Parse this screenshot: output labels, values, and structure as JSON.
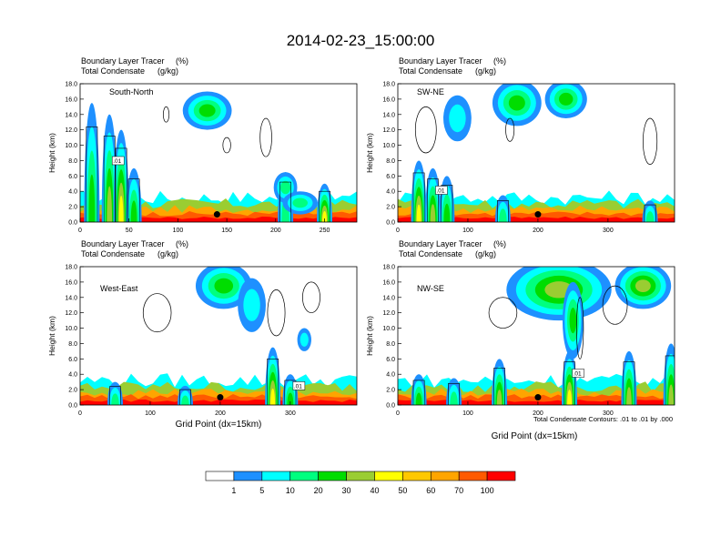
{
  "title": "2014-02-23_15:00:00",
  "label_left_1": "Boundary Layer Tracer",
  "label_right_1": "(%)",
  "label_left_2": "Total Condensate",
  "label_right_2": "(g/kg)",
  "ylabel": "Height (km)",
  "xlabel": "Grid Point (dx=15km)",
  "contour_note": "Total Condensate Contours: .01 to .01 by .000",
  "contour_label": ".01",
  "colorbar": {
    "levels": [
      "1",
      "5",
      "10",
      "20",
      "30",
      "40",
      "50",
      "60",
      "70",
      "100"
    ],
    "colors": [
      "#ffffff",
      "#1e90ff",
      "#00ffff",
      "#00ff7f",
      "#00dd00",
      "#9acd32",
      "#ffff00",
      "#ffc800",
      "#ffa500",
      "#ff5a00",
      "#ff0000"
    ]
  },
  "chart_data": [
    {
      "type": "heatmap",
      "panel": "South-North",
      "title": "South-North",
      "ylim": [
        0,
        18
      ],
      "xlim": [
        0,
        283
      ],
      "yticks": [
        "0.0",
        "2.0",
        "4.0",
        "6.0",
        "8.0",
        "10.0",
        "12.0",
        "14.0",
        "16.0",
        "18.0"
      ],
      "xticks": [
        "0",
        "50",
        "100",
        "150",
        "200",
        "250"
      ],
      "marker_x": 140,
      "marker_y": 1.0,
      "plumes": [
        {
          "x": 12,
          "top": 15.5,
          "lvl": 4
        },
        {
          "x": 30,
          "top": 14.0,
          "lvl": 5
        },
        {
          "x": 42,
          "top": 12.0,
          "lvl": 6
        },
        {
          "x": 55,
          "top": 7.0,
          "lvl": 4
        },
        {
          "x": 210,
          "top": 6.5,
          "lvl": 3
        },
        {
          "x": 250,
          "top": 5.0,
          "lvl": 6
        }
      ],
      "clouds": [
        {
          "x": 130,
          "y": 14.5,
          "w": 25,
          "h": 2.5,
          "lvl": 4
        },
        {
          "x": 210,
          "y": 4.5,
          "w": 12,
          "h": 2.0,
          "lvl": 3
        },
        {
          "x": 225,
          "y": 2.5,
          "w": 18,
          "h": 1.5,
          "lvl": 3
        }
      ],
      "outlines": [
        {
          "x": 88,
          "y": 14.0,
          "w": 6,
          "h": 2.0
        },
        {
          "x": 190,
          "y": 11.0,
          "w": 12,
          "h": 5.0
        },
        {
          "x": 150,
          "y": 10.0,
          "w": 8,
          "h": 2.0
        }
      ]
    },
    {
      "type": "heatmap",
      "panel": "SW-NE",
      "title": "SW-NE",
      "ylim": [
        0,
        18
      ],
      "xlim": [
        0,
        395
      ],
      "yticks": [
        "0.0",
        "2.0",
        "4.0",
        "6.0",
        "8.0",
        "10.0",
        "12.0",
        "14.0",
        "16.0",
        "18.0"
      ],
      "xticks": [
        "0",
        "100",
        "200",
        "300"
      ],
      "marker_x": 200,
      "marker_y": 1.0,
      "plumes": [
        {
          "x": 30,
          "top": 8.0,
          "lvl": 6
        },
        {
          "x": 50,
          "top": 7.0,
          "lvl": 5
        },
        {
          "x": 70,
          "top": 6.0,
          "lvl": 4
        },
        {
          "x": 150,
          "top": 3.5,
          "lvl": 3
        },
        {
          "x": 360,
          "top": 2.8,
          "lvl": 3
        }
      ],
      "clouds": [
        {
          "x": 170,
          "y": 15.5,
          "w": 35,
          "h": 3.0,
          "lvl": 4
        },
        {
          "x": 240,
          "y": 16.0,
          "w": 30,
          "h": 2.5,
          "lvl": 4
        },
        {
          "x": 85,
          "y": 13.5,
          "w": 20,
          "h": 3.0,
          "lvl": 2
        }
      ],
      "outlines": [
        {
          "x": 40,
          "y": 12.0,
          "w": 30,
          "h": 6.0
        },
        {
          "x": 160,
          "y": 12.0,
          "w": 12,
          "h": 3.0
        },
        {
          "x": 360,
          "y": 10.5,
          "w": 20,
          "h": 6.0
        }
      ]
    },
    {
      "type": "heatmap",
      "panel": "West-East",
      "title": "West-East",
      "ylim": [
        0,
        18
      ],
      "xlim": [
        0,
        395
      ],
      "yticks": [
        "0.0",
        "2.0",
        "4.0",
        "6.0",
        "8.0",
        "10.0",
        "12.0",
        "14.0",
        "16.0",
        "18.0"
      ],
      "xticks": [
        "0",
        "100",
        "200",
        "300"
      ],
      "marker_x": 200,
      "marker_y": 1.0,
      "plumes": [
        {
          "x": 275,
          "top": 7.5,
          "lvl": 6
        },
        {
          "x": 300,
          "top": 4.0,
          "lvl": 4
        },
        {
          "x": 50,
          "top": 3.0,
          "lvl": 3
        },
        {
          "x": 150,
          "top": 2.5,
          "lvl": 3
        }
      ],
      "clouds": [
        {
          "x": 205,
          "y": 15.5,
          "w": 40,
          "h": 3.0,
          "lvl": 4
        },
        {
          "x": 245,
          "y": 13.0,
          "w": 20,
          "h": 3.5,
          "lvl": 2
        },
        {
          "x": 320,
          "y": 8.5,
          "w": 10,
          "h": 1.5,
          "lvl": 2
        }
      ],
      "outlines": [
        {
          "x": 110,
          "y": 12.0,
          "w": 40,
          "h": 5.0
        },
        {
          "x": 330,
          "y": 14.0,
          "w": 25,
          "h": 4.0
        },
        {
          "x": 280,
          "y": 12.0,
          "w": 25,
          "h": 6.0
        }
      ]
    },
    {
      "type": "heatmap",
      "panel": "NW-SE",
      "title": "NW-SE",
      "ylim": [
        0,
        18
      ],
      "xlim": [
        0,
        395
      ],
      "yticks": [
        "0.0",
        "2.0",
        "4.0",
        "6.0",
        "8.0",
        "10.0",
        "12.0",
        "14.0",
        "16.0",
        "18.0"
      ],
      "xticks": [
        "0",
        "100",
        "200",
        "300"
      ],
      "marker_x": 200,
      "marker_y": 1.0,
      "plumes": [
        {
          "x": 145,
          "top": 6.0,
          "lvl": 5
        },
        {
          "x": 245,
          "top": 7.0,
          "lvl": 6
        },
        {
          "x": 330,
          "top": 7.0,
          "lvl": 5
        },
        {
          "x": 390,
          "top": 8.0,
          "lvl": 5
        },
        {
          "x": 30,
          "top": 4.0,
          "lvl": 4
        },
        {
          "x": 80,
          "top": 3.5,
          "lvl": 3
        }
      ],
      "clouds": [
        {
          "x": 230,
          "y": 15.0,
          "w": 75,
          "h": 4.0,
          "lvl": 5
        },
        {
          "x": 350,
          "y": 15.5,
          "w": 40,
          "h": 3.0,
          "lvl": 5
        },
        {
          "x": 250,
          "y": 11.0,
          "w": 15,
          "h": 5.0,
          "lvl": 4
        }
      ],
      "outlines": [
        {
          "x": 150,
          "y": 12.0,
          "w": 40,
          "h": 4.0
        },
        {
          "x": 310,
          "y": 13.0,
          "w": 35,
          "h": 5.0
        },
        {
          "x": 260,
          "y": 10.0,
          "w": 10,
          "h": 8.0
        }
      ]
    }
  ]
}
